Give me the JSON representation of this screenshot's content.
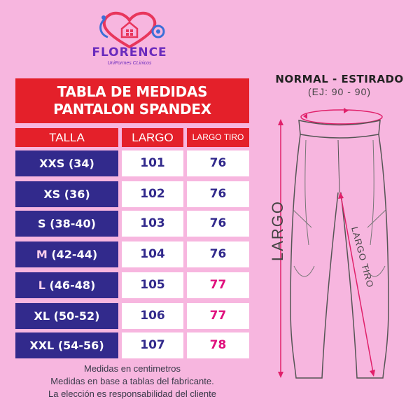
{
  "brand": {
    "name": "FLORENCE",
    "tagline": "UniFormes CLinicos",
    "icon": "heart-stethoscope-house-icon",
    "colors": {
      "heart": "#e8365c",
      "text": "#6a2bbd",
      "stethoscope": "#3b6fd8"
    }
  },
  "table": {
    "title_line1": "TABLA DE MEDIDAS",
    "title_line2": "PANTALON SPANDEX",
    "headers": [
      "TALLA",
      "LARGO",
      "LARGO TIRO"
    ],
    "rows": [
      {
        "size_letter": "XXS",
        "size_range": "(34)",
        "largo": "101",
        "tiro": "76"
      },
      {
        "size_letter": "XS",
        "size_range": "(36)",
        "largo": "102",
        "tiro": "76"
      },
      {
        "size_letter": "S",
        "size_range": "(38-40)",
        "largo": "103",
        "tiro": "76"
      },
      {
        "size_letter": "M",
        "size_range": "(42-44)",
        "largo": "104",
        "tiro": "76"
      },
      {
        "size_letter": "L",
        "size_range": "(46-48)",
        "largo": "105",
        "tiro": "77"
      },
      {
        "size_letter": "XL",
        "size_range": "(50-52)",
        "largo": "106",
        "tiro": "77"
      },
      {
        "size_letter": "XXL",
        "size_range": "(54-56)",
        "largo": "107",
        "tiro": "78"
      }
    ],
    "colors": {
      "header_red": "#e4202a",
      "navy": "#322a8c",
      "value_navy": "#322a8c",
      "value_pink": "#e0117d"
    }
  },
  "notes": [
    "Medidas en centimetros",
    "Medidas en base a tablas del fabricante.",
    "La elección es responsabilidad del cliente"
  ],
  "diagram": {
    "title": "NORMAL - ESTIRADO",
    "subtitle": "(EJ: 90 - 90)",
    "largo_label": "LARGO",
    "tiro_label": "LARGO TIRO",
    "icon": "leggings-outline-icon",
    "arrow_color": "#e0206a"
  }
}
